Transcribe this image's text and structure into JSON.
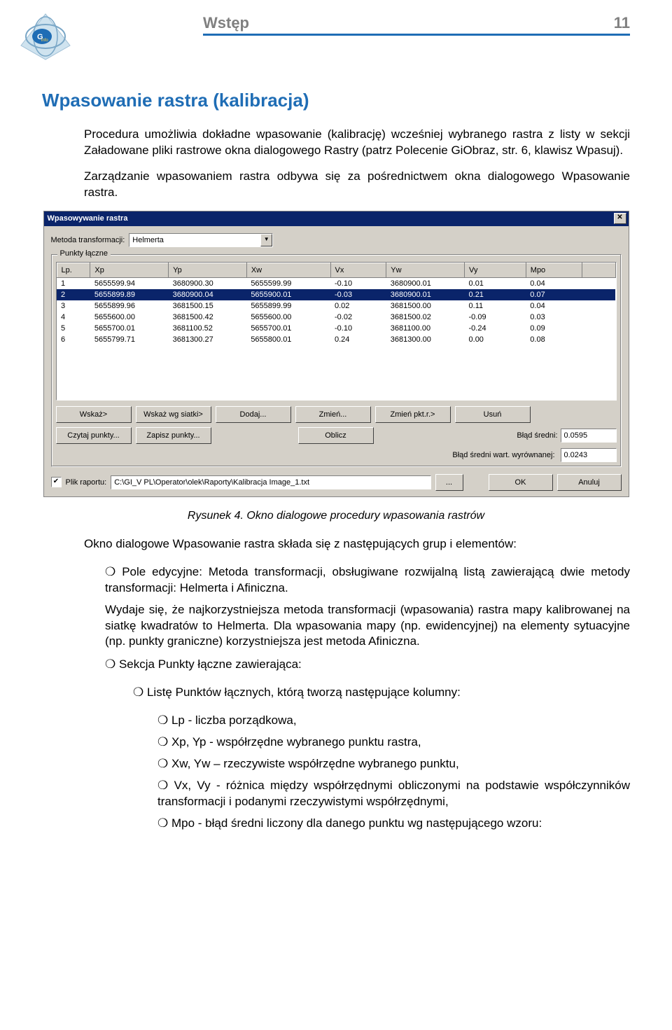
{
  "header": {
    "title": "Wstęp",
    "page_number": "11"
  },
  "section_title": "Wpasowanie rastra (kalibracja)",
  "para1": "Procedura umożliwia dokładne wpasowanie (kalibrację) wcześniej wybranego rastra z listy w sekcji Załadowane pliki rastrowe okna dialogowego Rastry (patrz Polecenie GiObraz, str. 6, klawisz Wpasuj).",
  "para2": "Zarządzanie wpasowaniem rastra odbywa się za pośrednictwem okna dialogowego Wpasowanie rastra.",
  "caption": "Rysunek 4. Okno dialogowe procedury wpasowania rastrów",
  "post_caption": "Okno dialogowe Wpasowanie rastra składa się z następujących grup i elementów:",
  "bullet1a": "Pole edycyjne: Metoda transformacji, obsługiwane rozwijalną listą zawierającą dwie metody transformacji: Helmerta i Afiniczna.",
  "bullet1b": "Wydaje się, że najkorzystniejsza metoda transformacji (wpasowania) rastra mapy kalibrowanej na siatkę kwadratów to Helmerta. Dla wpasowania mapy (np. ewidencyjnej) na elementy sytuacyjne (np. punkty graniczne) korzystniejsza jest metoda Afiniczna.",
  "bullet2": "Sekcja Punkty łączne zawierająca:",
  "bullet2_1": "Listę Punktów łącznych, którą tworzą następujące kolumny:",
  "cols": {
    "lp": "Lp - liczba porządkowa,",
    "xp": "Xp, Yp - współrzędne wybranego punktu rastra,",
    "xw": "Xw, Yw – rzeczywiste współrzędne wybranego punktu,",
    "vx": "Vx, Vy - różnica między współrzędnymi obliczonymi na podstawie współczynników transformacji i podanymi rzeczywistymi współrzędnymi,",
    "mpo": "Mpo - błąd średni liczony dla danego punktu wg następującego wzoru:"
  },
  "dialog": {
    "title": "Wpasowywanie rastra",
    "method_label": "Metoda transformacji:",
    "method_value": "Helmerta",
    "group_label": "Punkty łączne",
    "columns": [
      "Lp.",
      "Xp",
      "Yp",
      "Xw",
      "Vx",
      "Yw",
      "Vy",
      "Mpo"
    ],
    "col_widths": [
      "6%",
      "14%",
      "14%",
      "15%",
      "10%",
      "14%",
      "11%",
      "10%"
    ],
    "rows": [
      [
        "1",
        "5655599.94",
        "3680900.30",
        "5655599.99",
        "-0.10",
        "3680900.01",
        "0.01",
        "0.04"
      ],
      [
        "2",
        "5655899.89",
        "3680900.04",
        "5655900.01",
        "-0.03",
        "3680900.01",
        "0.21",
        "0.07"
      ],
      [
        "3",
        "5655899.96",
        "3681500.15",
        "5655899.99",
        "0.02",
        "3681500.00",
        "0.11",
        "0.04"
      ],
      [
        "4",
        "5655600.00",
        "3681500.42",
        "5655600.00",
        "-0.02",
        "3681500.02",
        "-0.09",
        "0.03"
      ],
      [
        "5",
        "5655700.01",
        "3681100.52",
        "5655700.01",
        "-0.10",
        "3681100.00",
        "-0.24",
        "0.09"
      ],
      [
        "6",
        "5655799.71",
        "3681300.27",
        "5655800.01",
        "0.24",
        "3681300.00",
        "0.00",
        "0.08"
      ]
    ],
    "selected_row_index": 1,
    "buttons_row1": [
      "Wskaż>",
      "Wskaż wg siatki>",
      "Dodaj...",
      "Zmień...",
      "Zmień pkt.r.>",
      "Usuń"
    ],
    "buttons_row2": [
      "Czytaj punkty...",
      "Zapisz punkty...",
      "Oblicz"
    ],
    "err_mean_label": "Błąd średni:",
    "err_mean_value": "0.0595",
    "err_adj_label": "Błąd średni wart. wyrównanej:",
    "err_adj_value": "0.0243",
    "report_check_label": "Plik raportu:",
    "report_path": "C:\\GI_V PL\\Operator\\olek\\Raporty\\Kalibracja Image_1.txt",
    "browse_btn": "...",
    "ok_btn": "OK",
    "cancel_btn": "Anuluj"
  },
  "colors": {
    "accent": "#1f6db5",
    "muted": "#808080",
    "win_bg": "#d4d0c8",
    "title_bg": "#0a246a"
  }
}
